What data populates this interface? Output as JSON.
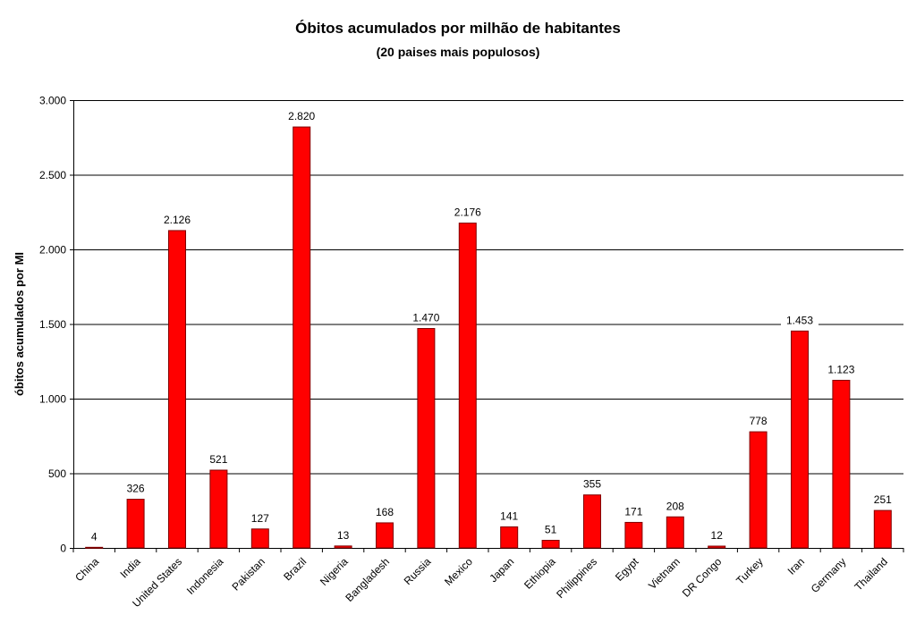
{
  "chart_data": {
    "type": "bar",
    "title": "Óbitos acumulados por milhão de habitantes",
    "subtitle": "(20 paises mais populosos)",
    "xlabel": "",
    "ylabel": "óbitos acumulados por MI",
    "ylim": [
      0,
      3000
    ],
    "yticks": [
      0,
      500,
      1000,
      1500,
      2000,
      2500,
      3000
    ],
    "ytick_labels": [
      "0",
      "500",
      "1.000",
      "1.500",
      "2.000",
      "2.500",
      "3.000"
    ],
    "grid": true,
    "legend": "none",
    "bar_color": "#ff0000",
    "bar_edge_color": "#800000",
    "categories": [
      "China",
      "India",
      "United States",
      "Indonesia",
      "Pakistan",
      "Brazil",
      "Nigeria",
      "Bangladesh",
      "Russia",
      "Mexico",
      "Japan",
      "Ethiopia",
      "Philippines",
      "Egypt",
      "Vietnam",
      "DR Congo",
      "Turkey",
      "Iran",
      "Germany",
      "Thailand"
    ],
    "values": [
      4,
      326,
      2126,
      521,
      127,
      2820,
      13,
      168,
      1470,
      2176,
      141,
      51,
      355,
      171,
      208,
      12,
      778,
      1453,
      1123,
      251
    ],
    "value_labels": [
      "4",
      "326",
      "2.126",
      "521",
      "127",
      "2.820",
      "13",
      "168",
      "1.470",
      "2.176",
      "141",
      "51",
      "355",
      "171",
      "208",
      "12",
      "778",
      "1.453",
      "1.123",
      "251"
    ]
  }
}
